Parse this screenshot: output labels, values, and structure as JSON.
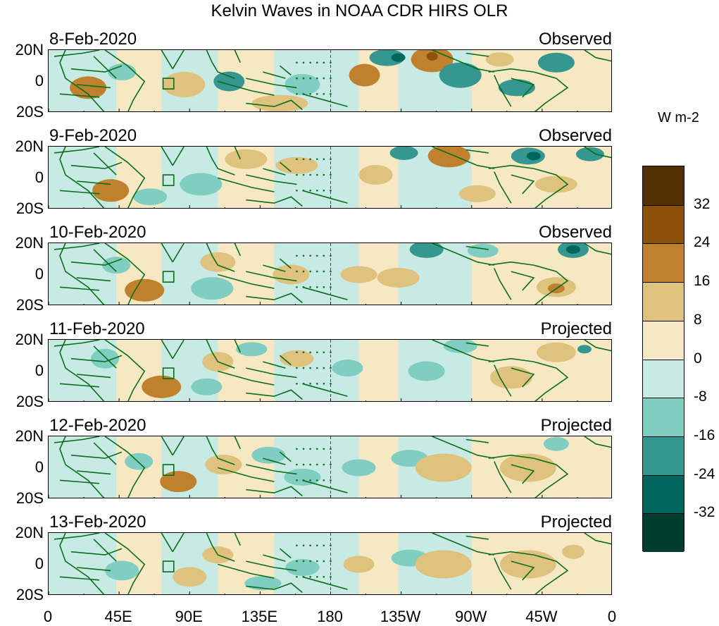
{
  "title": "Kelvin Waves in NOAA CDR HIRS OLR",
  "units": "W m-2",
  "panels": [
    {
      "date": "8-Feb-2020",
      "status": "Observed"
    },
    {
      "date": "9-Feb-2020",
      "status": "Observed"
    },
    {
      "date": "10-Feb-2020",
      "status": "Observed"
    },
    {
      "date": "11-Feb-2020",
      "status": "Projected"
    },
    {
      "date": "12-Feb-2020",
      "status": "Projected"
    },
    {
      "date": "13-Feb-2020",
      "status": "Projected"
    }
  ],
  "lat_labels": [
    "20N",
    "0",
    "20S"
  ],
  "lon_labels": [
    "0",
    "45E",
    "90E",
    "135E",
    "180",
    "135W",
    "90W",
    "45W",
    "0"
  ],
  "colorbar": {
    "labels": [
      "32",
      "24",
      "16",
      "8",
      "0",
      "-8",
      "-16",
      "-24",
      "-32"
    ],
    "colors": [
      "#543005",
      "#8c510a",
      "#bf812d",
      "#dfc27d",
      "#f6e8c3",
      "#c7eae5",
      "#80cdc1",
      "#35978f",
      "#01665e",
      "#003c30"
    ]
  },
  "map_colors": {
    "coast": "#0a6e1a",
    "land_bg": "#f6e8c3",
    "ocean_bg": "#d8efea"
  }
}
